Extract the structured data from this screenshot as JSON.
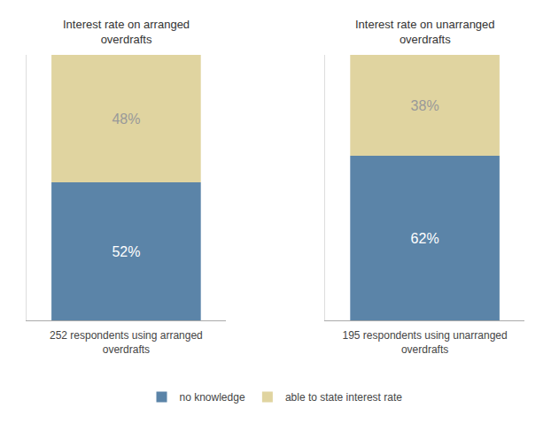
{
  "chart_data": [
    {
      "type": "bar",
      "title": "Interest rate on arranged\noverdrafts",
      "xlabel": "252 respondents using arranged\noverdrafts",
      "categories": [
        null
      ],
      "series": [
        {
          "name": "no knowledge",
          "color": "#5b84a8",
          "values": [
            52
          ],
          "value_labels": [
            "52%"
          ]
        },
        {
          "name": "able to state interest rate",
          "color": "#e0d4a0",
          "values": [
            48
          ],
          "value_labels": [
            "48%"
          ]
        }
      ],
      "stacked": true,
      "data_labels": true,
      "ylim": [
        0,
        100
      ],
      "yticks": [],
      "tick_labels": false,
      "grid": false,
      "legend": "bottom"
    },
    {
      "type": "bar",
      "title": "Interest rate on unarranged\noverdrafts",
      "xlabel": "195 respondents using unarranged\noverdrafts",
      "categories": [
        null
      ],
      "series": [
        {
          "name": "no knowledge",
          "color": "#5b84a8",
          "values": [
            62
          ],
          "value_labels": [
            "62%"
          ]
        },
        {
          "name": "able to state interest rate",
          "color": "#e0d4a0",
          "values": [
            38
          ],
          "value_labels": [
            "38%"
          ]
        }
      ],
      "stacked": true,
      "data_labels": true,
      "ylim": [
        0,
        100
      ],
      "yticks": [],
      "tick_labels": false,
      "grid": false,
      "legend": "bottom"
    }
  ]
}
